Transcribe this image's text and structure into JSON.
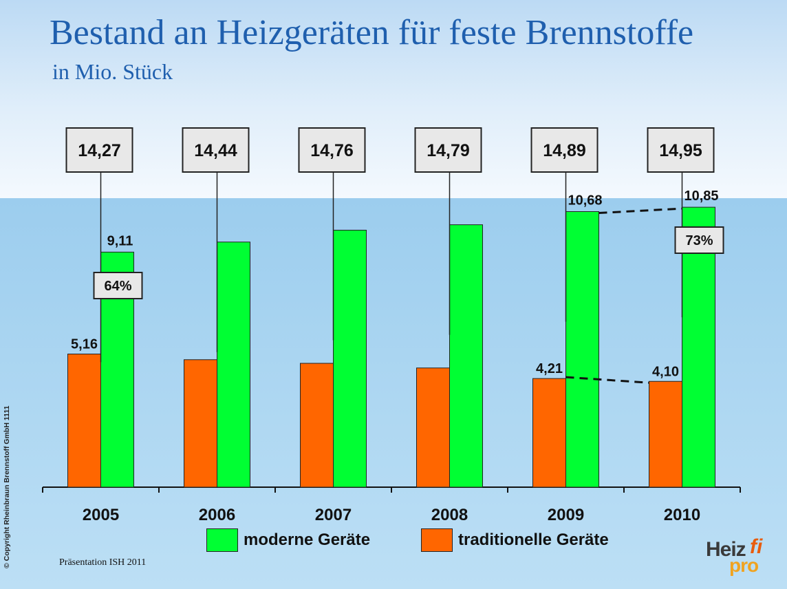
{
  "header": {
    "title": "Bestand an Heizgeräten für feste Brennstoffe",
    "subtitle": "in Mio. Stück"
  },
  "colors": {
    "modern": "#00ff33",
    "traditional": "#ff6600",
    "title": "#1f5fae"
  },
  "chart_data": {
    "type": "bar",
    "categories": [
      "2005",
      "2006",
      "2007",
      "2008",
      "2009",
      "2010"
    ],
    "series": [
      {
        "name": "traditionelle Geräte",
        "values": [
          5.16,
          4.94,
          4.8,
          4.62,
          4.21,
          4.1
        ]
      },
      {
        "name": "moderne Geräte",
        "values": [
          9.11,
          9.5,
          9.96,
          10.17,
          10.68,
          10.85
        ]
      }
    ],
    "totals": [
      "14,27",
      "14,44",
      "14,76",
      "14,79",
      "14,89",
      "14,95"
    ],
    "data_labels": {
      "traditional": {
        "2005": "5,16",
        "2009": "4,21",
        "2010": "4,10"
      },
      "modern": {
        "2005": "9,11",
        "2009": "10,68",
        "2010": "10,85"
      }
    },
    "share_labels": {
      "2005": "64%",
      "2010": "73%"
    },
    "ylim": [
      0,
      16
    ],
    "grid": false,
    "legend": {
      "position": "bottom",
      "items": [
        {
          "name": "moderne Geräte",
          "color": "#00ff33"
        },
        {
          "name": "traditionelle Geräte",
          "color": "#ff6600"
        }
      ]
    }
  },
  "footer": {
    "copyright": "© Copyright  Rheinbraun Brennstoff GmbH    1111",
    "note": "Präsentation ISH 2011",
    "logo_text_heiz": "Heiz",
    "logo_text_fi": "fi",
    "logo_text_pro": "pro"
  }
}
